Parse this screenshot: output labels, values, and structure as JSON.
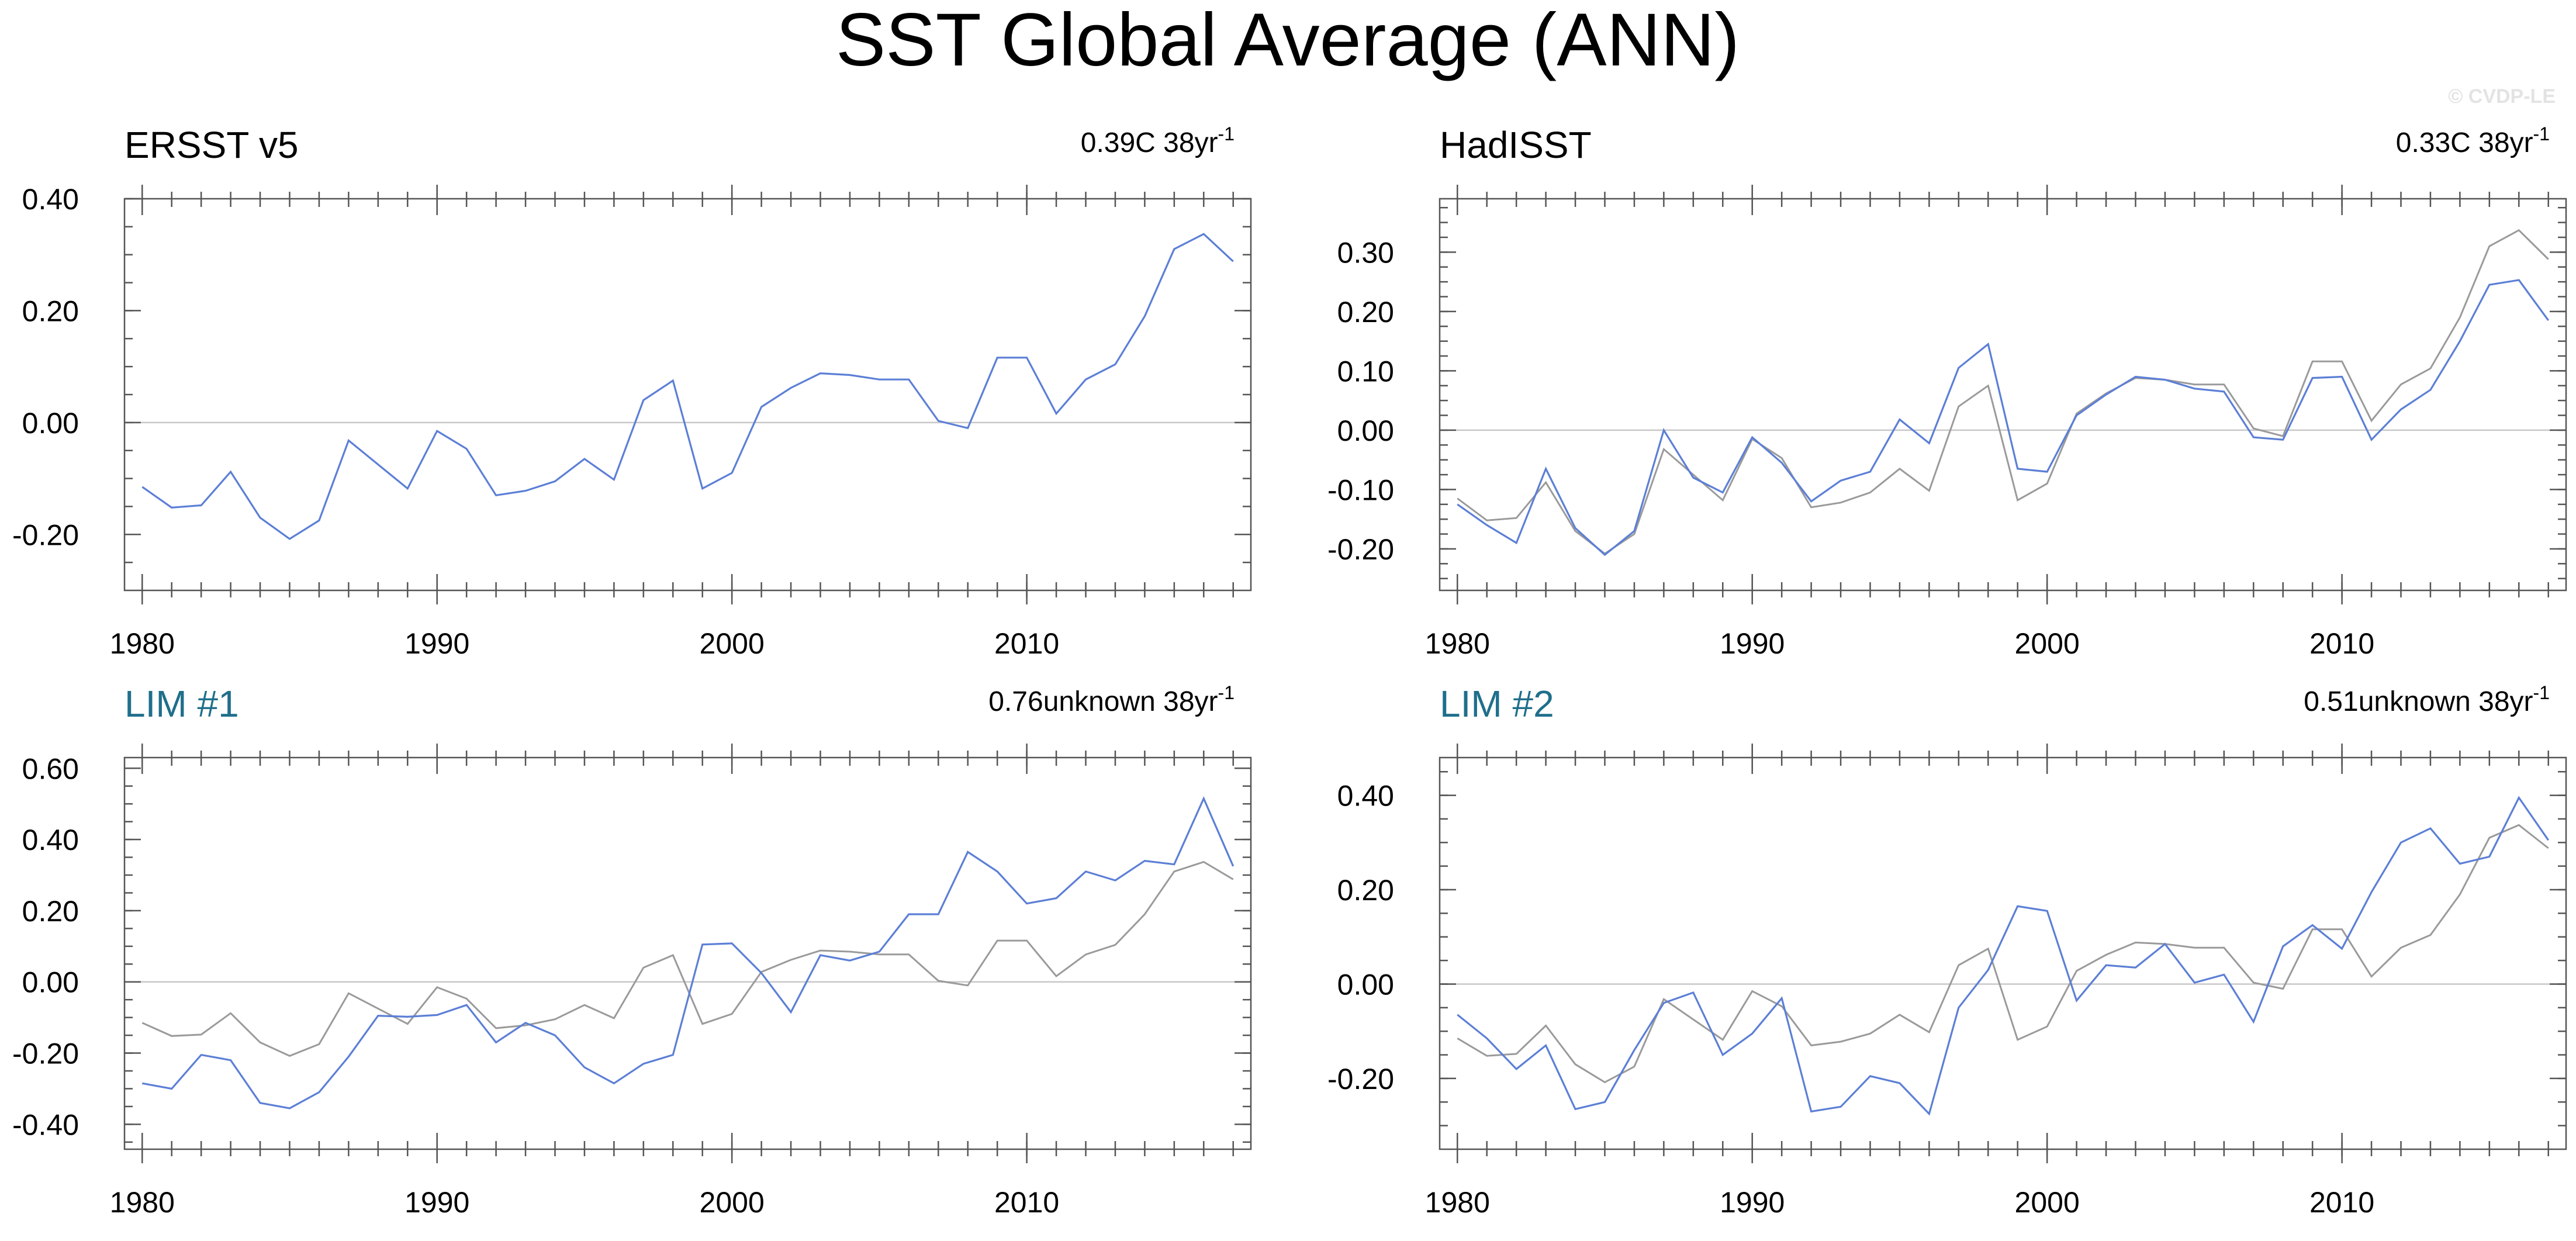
{
  "title": "SST Global Average (ANN)",
  "watermark": "© CVDP-LE",
  "colors": {
    "series_main": "#5c7fd6",
    "series_obs": "#9a9a9a",
    "model_title": "#1f6f8b",
    "obs_title": "#000000"
  },
  "chart_data": [
    {
      "type": "line",
      "title": "ERSST v5",
      "title_color": "#000000",
      "trend": "0.39C 38yr",
      "trend_exponent": "-1",
      "xlim": [
        1979.4,
        2017.6
      ],
      "ylim": [
        -0.3,
        0.4
      ],
      "xticks": [
        1980,
        1990,
        2000,
        2010
      ],
      "yticks": [
        -0.2,
        0.0,
        0.2,
        0.4
      ],
      "ytick_labels": [
        "-0.20",
        "0.00",
        "0.20",
        "0.40"
      ],
      "yminor_step": 0.05,
      "x": [
        1980,
        1981,
        1982,
        1983,
        1984,
        1985,
        1986,
        1987,
        1988,
        1989,
        1990,
        1991,
        1992,
        1993,
        1994,
        1995,
        1996,
        1997,
        1998,
        1999,
        2000,
        2001,
        2002,
        2003,
        2004,
        2005,
        2006,
        2007,
        2008,
        2009,
        2010,
        2011,
        2012,
        2013,
        2014,
        2015,
        2016,
        2017
      ],
      "series": [
        {
          "name": "ERSST v5",
          "role": "main",
          "values": [
            -0.115,
            -0.152,
            -0.148,
            -0.088,
            -0.17,
            -0.208,
            -0.175,
            -0.032,
            -0.075,
            -0.118,
            -0.015,
            -0.047,
            -0.13,
            -0.122,
            -0.105,
            -0.065,
            -0.102,
            0.04,
            0.075,
            -0.118,
            -0.09,
            0.028,
            0.062,
            0.088,
            0.085,
            0.077,
            0.077,
            0.003,
            -0.01,
            0.116,
            0.116,
            0.016,
            0.077,
            0.104,
            0.19,
            0.31,
            0.337,
            0.288
          ]
        }
      ]
    },
    {
      "type": "line",
      "title": "HadISST",
      "title_color": "#000000",
      "trend": "0.33C 38yr",
      "trend_exponent": "-1",
      "xlim": [
        1979.4,
        2017.6
      ],
      "ylim": [
        -0.27,
        0.39
      ],
      "xticks": [
        1980,
        1990,
        2000,
        2010
      ],
      "yticks": [
        -0.2,
        -0.1,
        0.0,
        0.1,
        0.2,
        0.3
      ],
      "ytick_labels": [
        "-0.20",
        "-0.10",
        "0.00",
        "0.10",
        "0.20",
        "0.30"
      ],
      "yminor_step": 0.025,
      "x": [
        1980,
        1981,
        1982,
        1983,
        1984,
        1985,
        1986,
        1987,
        1988,
        1989,
        1990,
        1991,
        1992,
        1993,
        1994,
        1995,
        1996,
        1997,
        1998,
        1999,
        2000,
        2001,
        2002,
        2003,
        2004,
        2005,
        2006,
        2007,
        2008,
        2009,
        2010,
        2011,
        2012,
        2013,
        2014,
        2015,
        2016,
        2017
      ],
      "series": [
        {
          "name": "ERSST v5",
          "role": "obs",
          "values": [
            -0.115,
            -0.152,
            -0.148,
            -0.088,
            -0.17,
            -0.208,
            -0.175,
            -0.032,
            -0.075,
            -0.118,
            -0.015,
            -0.047,
            -0.13,
            -0.122,
            -0.105,
            -0.065,
            -0.102,
            0.04,
            0.075,
            -0.118,
            -0.09,
            0.028,
            0.062,
            0.088,
            0.085,
            0.077,
            0.077,
            0.003,
            -0.01,
            0.116,
            0.116,
            0.016,
            0.077,
            0.104,
            0.19,
            0.31,
            0.337,
            0.288
          ]
        },
        {
          "name": "HadISST",
          "role": "main",
          "values": [
            -0.125,
            -0.16,
            -0.19,
            -0.065,
            -0.165,
            -0.21,
            -0.17,
            0.0,
            -0.08,
            -0.105,
            -0.012,
            -0.055,
            -0.12,
            -0.085,
            -0.07,
            0.018,
            -0.022,
            0.105,
            0.145,
            -0.065,
            -0.07,
            0.025,
            0.06,
            0.09,
            0.085,
            0.07,
            0.065,
            -0.012,
            -0.016,
            0.088,
            0.09,
            -0.016,
            0.035,
            0.068,
            0.15,
            0.245,
            0.253,
            0.185
          ]
        }
      ]
    },
    {
      "type": "line",
      "title": "LIM #1",
      "title_color": "#1f6f8b",
      "trend": "0.76unknown 38yr",
      "trend_exponent": "-1",
      "xlim": [
        1979.4,
        2017.6
      ],
      "ylim": [
        -0.47,
        0.63
      ],
      "xticks": [
        1980,
        1990,
        2000,
        2010
      ],
      "yticks": [
        -0.4,
        -0.2,
        0.0,
        0.2,
        0.4,
        0.6
      ],
      "ytick_labels": [
        "-0.40",
        "-0.20",
        "0.00",
        "0.20",
        "0.40",
        "0.60"
      ],
      "yminor_step": 0.05,
      "x": [
        1980,
        1981,
        1982,
        1983,
        1984,
        1985,
        1986,
        1987,
        1988,
        1989,
        1990,
        1991,
        1992,
        1993,
        1994,
        1995,
        1996,
        1997,
        1998,
        1999,
        2000,
        2001,
        2002,
        2003,
        2004,
        2005,
        2006,
        2007,
        2008,
        2009,
        2010,
        2011,
        2012,
        2013,
        2014,
        2015,
        2016,
        2017
      ],
      "series": [
        {
          "name": "ERSST v5",
          "role": "obs",
          "values": [
            -0.115,
            -0.152,
            -0.148,
            -0.088,
            -0.17,
            -0.208,
            -0.175,
            -0.032,
            -0.075,
            -0.118,
            -0.015,
            -0.047,
            -0.13,
            -0.122,
            -0.105,
            -0.065,
            -0.102,
            0.04,
            0.075,
            -0.118,
            -0.09,
            0.028,
            0.062,
            0.088,
            0.085,
            0.077,
            0.077,
            0.003,
            -0.01,
            0.116,
            0.116,
            0.016,
            0.077,
            0.104,
            0.19,
            0.31,
            0.337,
            0.288
          ]
        },
        {
          "name": "LIM #1",
          "role": "main",
          "values": [
            -0.285,
            -0.3,
            -0.205,
            -0.22,
            -0.34,
            -0.355,
            -0.31,
            -0.21,
            -0.095,
            -0.098,
            -0.093,
            -0.065,
            -0.17,
            -0.115,
            -0.15,
            -0.24,
            -0.285,
            -0.23,
            -0.205,
            0.105,
            0.108,
            0.025,
            -0.085,
            0.075,
            0.06,
            0.085,
            0.19,
            0.19,
            0.365,
            0.31,
            0.22,
            0.235,
            0.31,
            0.285,
            0.34,
            0.33,
            0.515,
            0.325
          ]
        }
      ]
    },
    {
      "type": "line",
      "title": "LIM #2",
      "title_color": "#1f6f8b",
      "trend": "0.51unknown 38yr",
      "trend_exponent": "-1",
      "xlim": [
        1979.4,
        2017.6
      ],
      "ylim": [
        -0.35,
        0.48
      ],
      "xticks": [
        1980,
        1990,
        2000,
        2010
      ],
      "yticks": [
        -0.2,
        0.0,
        0.2,
        0.4
      ],
      "ytick_labels": [
        "-0.20",
        "0.00",
        "0.20",
        "0.40"
      ],
      "yminor_step": 0.05,
      "x": [
        1980,
        1981,
        1982,
        1983,
        1984,
        1985,
        1986,
        1987,
        1988,
        1989,
        1990,
        1991,
        1992,
        1993,
        1994,
        1995,
        1996,
        1997,
        1998,
        1999,
        2000,
        2001,
        2002,
        2003,
        2004,
        2005,
        2006,
        2007,
        2008,
        2009,
        2010,
        2011,
        2012,
        2013,
        2014,
        2015,
        2016,
        2017
      ],
      "series": [
        {
          "name": "ERSST v5",
          "role": "obs",
          "values": [
            -0.115,
            -0.152,
            -0.148,
            -0.088,
            -0.17,
            -0.208,
            -0.175,
            -0.032,
            -0.075,
            -0.118,
            -0.015,
            -0.047,
            -0.13,
            -0.122,
            -0.105,
            -0.065,
            -0.102,
            0.04,
            0.075,
            -0.118,
            -0.09,
            0.028,
            0.062,
            0.088,
            0.085,
            0.077,
            0.077,
            0.003,
            -0.01,
            0.116,
            0.116,
            0.016,
            0.077,
            0.104,
            0.19,
            0.31,
            0.337,
            0.288
          ]
        },
        {
          "name": "LIM #2",
          "role": "main",
          "values": [
            -0.065,
            -0.115,
            -0.18,
            -0.13,
            -0.265,
            -0.25,
            -0.14,
            -0.04,
            -0.018,
            -0.15,
            -0.105,
            -0.03,
            -0.27,
            -0.26,
            -0.195,
            -0.21,
            -0.275,
            -0.05,
            0.03,
            0.165,
            0.155,
            -0.035,
            0.04,
            0.035,
            0.085,
            0.003,
            0.02,
            -0.08,
            0.08,
            0.125,
            0.075,
            0.195,
            0.3,
            0.33,
            0.255,
            0.27,
            0.395,
            0.305
          ]
        }
      ]
    }
  ]
}
